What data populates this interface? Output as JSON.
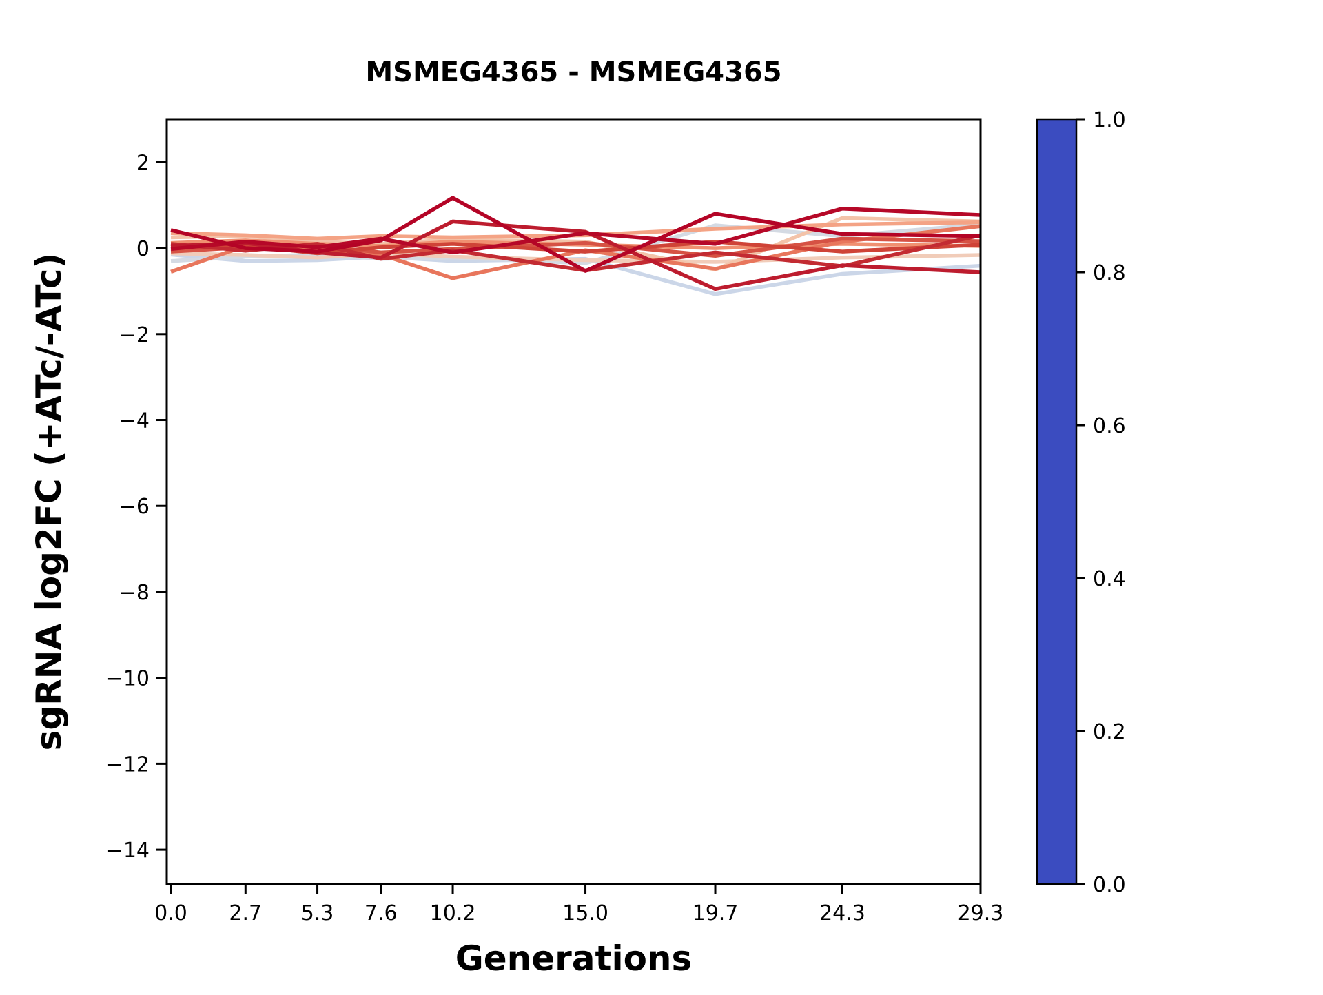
{
  "chart_data": {
    "type": "line",
    "title": "MSMEG4365 - MSMEG4365",
    "xlabel": "Generations",
    "ylabel": "sgRNA log2FC (+ATc/-ATc)",
    "x": [
      0.0,
      2.7,
      5.3,
      7.6,
      10.2,
      15.0,
      19.7,
      24.3,
      29.3
    ],
    "xtick_labels": [
      "0.0",
      "2.7",
      "5.3",
      "7.6",
      "10.2",
      "15.0",
      "19.7",
      "24.3",
      "29.3"
    ],
    "ytick_values": [
      2,
      0,
      -2,
      -4,
      -6,
      -8,
      -10,
      -12,
      -14
    ],
    "ytick_labels": [
      "2",
      "0",
      "−2",
      "−4",
      "−6",
      "−8",
      "−10",
      "−12",
      "−14"
    ],
    "xlim": [
      -0.15,
      29.3
    ],
    "ylim": [
      -14.8,
      3.0
    ],
    "grid": false,
    "legend_position": "none",
    "background_color": "#ffffff",
    "axis_color": "#000000",
    "line_width": 5.5,
    "series": [
      {
        "colormap_value": 0.41,
        "color": "#cbd6e8",
        "values": [
          -0.15,
          -0.3,
          -0.28,
          -0.2,
          -0.3,
          -0.25,
          -1.07,
          -0.6,
          -0.41
        ]
      },
      {
        "colormap_value": 0.43,
        "color": "#d4dae3",
        "values": [
          -0.3,
          -0.2,
          -0.15,
          -0.25,
          -0.22,
          -0.35,
          0.53,
          0.28,
          0.55
        ]
      },
      {
        "colormap_value": 0.55,
        "color": "#f1ccb9",
        "values": [
          -0.12,
          -0.16,
          -0.22,
          -0.12,
          -0.2,
          -0.28,
          -0.32,
          -0.22,
          -0.16
        ]
      },
      {
        "colormap_value": 0.58,
        "color": "#f3c3a9",
        "values": [
          0.25,
          0.28,
          0.15,
          0.1,
          0.2,
          0.15,
          -0.5,
          0.7,
          0.62
        ]
      },
      {
        "colormap_value": 0.66,
        "color": "#f4a385",
        "values": [
          0.35,
          0.3,
          0.22,
          0.28,
          0.25,
          0.3,
          0.45,
          0.55,
          0.6
        ]
      },
      {
        "colormap_value": 0.72,
        "color": "#f09071",
        "values": [
          0.12,
          0.18,
          0.1,
          0.05,
          0.15,
          0.08,
          0.0,
          0.1,
          0.05
        ]
      },
      {
        "colormap_value": 0.78,
        "color": "#e8765c",
        "values": [
          -0.55,
          0.05,
          -0.02,
          -0.15,
          -0.7,
          -0.05,
          -0.48,
          0.15,
          0.51
        ]
      },
      {
        "colormap_value": 0.86,
        "color": "#d65244",
        "values": [
          -0.08,
          0.02,
          0.06,
          -0.1,
          -0.02,
          0.12,
          -0.18,
          0.22,
          0.16
        ]
      },
      {
        "colormap_value": 0.9,
        "color": "#cf4337",
        "values": [
          0.02,
          0.06,
          -0.12,
          0.02,
          0.1,
          -0.08,
          0.15,
          -0.08,
          0.08
        ]
      },
      {
        "colormap_value": 0.95,
        "color": "#c32b32",
        "values": [
          0.1,
          -0.06,
          0.1,
          -0.25,
          -0.05,
          -0.52,
          -0.1,
          -0.42,
          0.3
        ]
      },
      {
        "colormap_value": 0.97,
        "color": "#bd1c2e",
        "values": [
          0.05,
          0.12,
          -0.1,
          -0.22,
          0.62,
          0.38,
          -0.95,
          -0.4,
          -0.56
        ]
      },
      {
        "colormap_value": 0.99,
        "color": "#b60828",
        "values": [
          -0.02,
          0.15,
          0.02,
          0.22,
          -0.1,
          0.35,
          0.1,
          0.92,
          0.77
        ]
      },
      {
        "colormap_value": 1.0,
        "color": "#b40426",
        "values": [
          0.42,
          0.0,
          -0.08,
          0.18,
          1.17,
          -0.53,
          0.8,
          0.33,
          0.28
        ]
      }
    ],
    "colorbar": {
      "colormap": "coolwarm",
      "range": [
        0.0,
        1.0
      ],
      "tick_values": [
        0.0,
        0.2,
        0.4,
        0.6,
        0.8,
        1.0
      ],
      "tick_labels": [
        "0.0",
        "0.2",
        "0.4",
        "0.6",
        "0.8",
        "1.0"
      ],
      "gradient": [
        [
          0.0,
          "#3b4cc0"
        ],
        [
          0.1,
          "#506bdb"
        ],
        [
          0.2,
          "#6a8bef"
        ],
        [
          0.3,
          "#8caffe"
        ],
        [
          0.4,
          "#b2ccfb"
        ],
        [
          0.5,
          "#dcdddd"
        ],
        [
          0.6,
          "#f0cdb9"
        ],
        [
          0.7,
          "#f7ab8f"
        ],
        [
          0.8,
          "#ee8468"
        ],
        [
          0.9,
          "#d65244"
        ],
        [
          1.0,
          "#b40426"
        ]
      ]
    }
  }
}
